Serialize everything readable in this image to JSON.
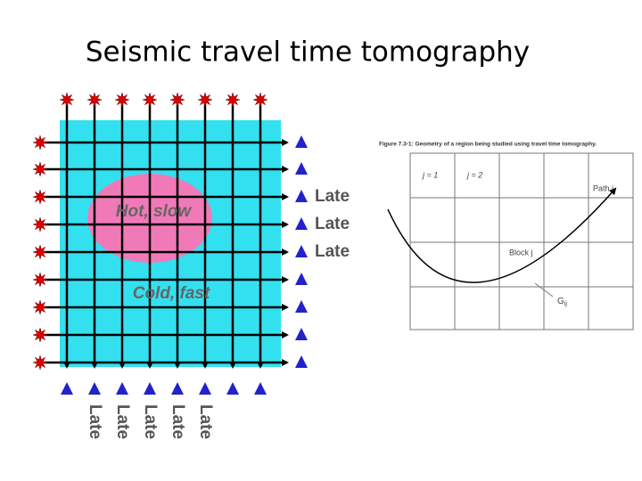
{
  "title": "Seismic travel time tomography",
  "left_diagram": {
    "hot_region": "Hot, slow",
    "cold_region": "Cold, fast",
    "right_labels": [
      "Late",
      "Late",
      "Late"
    ],
    "bottom_labels": [
      "Late",
      "Late",
      "Late",
      "Late",
      "Late"
    ]
  },
  "right_diagram": {
    "caption": "Figure 7.3-1: Geometry of a region being studied using travel time tomography.",
    "column_1": "j = 1",
    "column_2": "j = 2",
    "path": "Path i",
    "block": "Block j",
    "segment": {
      "symbol": "G",
      "subscript": "ij"
    }
  }
}
